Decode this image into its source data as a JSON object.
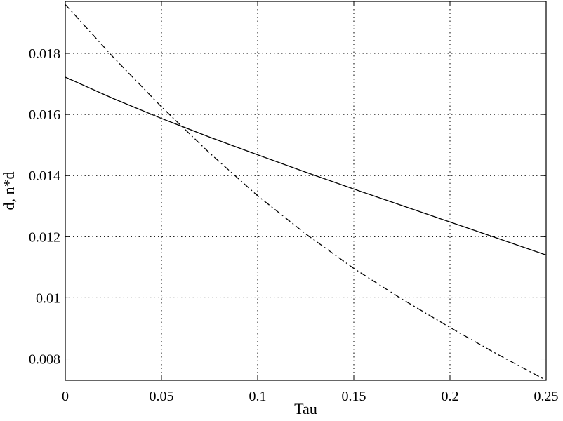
{
  "chart_data": {
    "type": "line",
    "title": "",
    "xlabel": "Tau",
    "ylabel": "d, n*d",
    "xlim": [
      0,
      0.25
    ],
    "ylim": [
      0.0073,
      0.0197
    ],
    "xticks": [
      0,
      0.05,
      0.1,
      0.15,
      0.2,
      0.25
    ],
    "xtick_labels": [
      "0",
      "0.05",
      "0.1",
      "0.15",
      "0.2",
      "0.25"
    ],
    "yticks": [
      0.008,
      0.01,
      0.012,
      0.014,
      0.016,
      0.018
    ],
    "ytick_labels": [
      "0.008",
      "0.01",
      "0.012",
      "0.014",
      "0.016",
      "0.018"
    ],
    "grid": true,
    "legend": "none",
    "series": [
      {
        "style": "solid",
        "color": "#000000",
        "x": [
          0,
          0.025,
          0.05,
          0.075,
          0.1,
          0.125,
          0.15,
          0.175,
          0.2,
          0.225,
          0.25
        ],
        "y": [
          0.01722,
          0.01652,
          0.01587,
          0.01526,
          0.01468,
          0.01411,
          0.01356,
          0.01302,
          0.01248,
          0.01194,
          0.0114
        ]
      },
      {
        "style": "dash-dot",
        "color": "#000000",
        "x": [
          0,
          0.025,
          0.05,
          0.075,
          0.1,
          0.125,
          0.15,
          0.175,
          0.2,
          0.225,
          0.25
        ],
        "y": [
          0.0196,
          0.01787,
          0.01625,
          0.01474,
          0.01334,
          0.01209,
          0.01096,
          0.00996,
          0.00903,
          0.00814,
          0.0073
        ]
      }
    ]
  }
}
